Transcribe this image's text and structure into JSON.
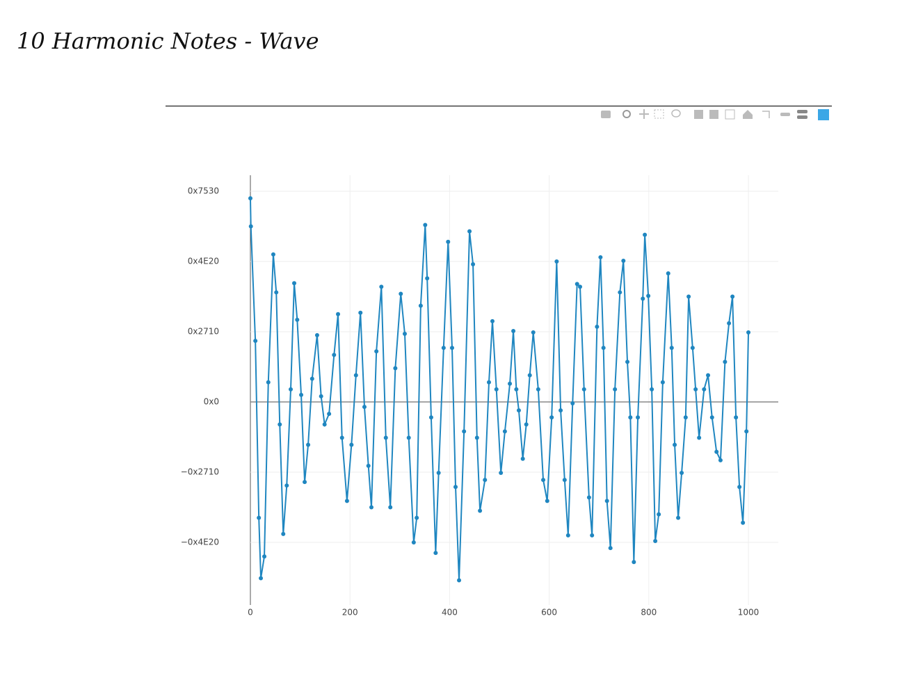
{
  "page_title": "10 Harmonic Notes - Wave",
  "chart_data": {
    "type": "line",
    "color": "#1f86c0",
    "markers": true,
    "grid": true,
    "zeroline": true,
    "xlim": [
      0,
      1060
    ],
    "ylim": [
      -28911,
      32277
    ],
    "xticks": [
      0,
      200,
      400,
      600,
      800,
      1000
    ],
    "yticks": [
      {
        "value": 30000,
        "label": "0x7530"
      },
      {
        "value": 20000,
        "label": "0x4E20"
      },
      {
        "value": 10000,
        "label": "0x2710"
      },
      {
        "value": 0,
        "label": "0x0"
      },
      {
        "value": -10000,
        "label": "−0x2710"
      },
      {
        "value": -20000,
        "label": "−0x4E20"
      }
    ],
    "x": [
      0,
      1,
      10,
      17,
      21,
      28,
      36,
      46,
      52,
      59,
      66,
      73,
      81,
      88,
      94,
      102,
      109,
      116,
      124,
      134,
      142,
      149,
      158,
      168,
      176,
      184,
      194,
      203,
      212,
      221,
      229,
      237,
      243,
      253,
      263,
      272,
      281,
      291,
      302,
      310,
      318,
      328,
      334,
      342,
      351,
      355,
      363,
      372,
      378,
      388,
      397,
      405,
      412,
      419,
      429,
      440,
      447,
      455,
      461,
      471,
      479,
      486,
      494,
      503,
      511,
      521,
      528,
      534,
      539,
      547,
      554,
      561,
      568,
      578,
      588,
      596,
      605,
      615,
      623,
      631,
      638,
      647,
      656,
      662,
      670,
      680,
      686,
      696,
      703,
      709,
      716,
      723,
      732,
      742,
      749,
      757,
      763,
      770,
      778,
      788,
      792,
      799,
      806,
      813,
      820,
      828,
      839,
      846,
      852,
      859,
      866,
      874,
      880,
      888,
      894,
      901,
      911,
      919,
      927,
      936,
      944,
      953,
      961,
      968,
      975,
      982,
      989,
      996,
      1000
    ],
    "values": [
      29000,
      25000,
      8700,
      -16500,
      -25100,
      -22000,
      2800,
      21000,
      15600,
      -3200,
      -18800,
      -11900,
      1800,
      16900,
      11700,
      1000,
      -11400,
      -6100,
      3300,
      9500,
      800,
      -3200,
      -1700,
      6700,
      12500,
      -5100,
      -14100,
      -6100,
      3800,
      12700,
      -700,
      -9100,
      -15000,
      7200,
      16400,
      -5100,
      -15000,
      4800,
      15400,
      9700,
      -5100,
      -20000,
      -16500,
      13700,
      25200,
      17600,
      -2200,
      -21500,
      -10100,
      7700,
      22800,
      7700,
      -12100,
      -25400,
      -4200,
      24300,
      19600,
      -5100,
      -15500,
      -11100,
      2800,
      11500,
      1800,
      -10100,
      -4200,
      2600,
      10100,
      1800,
      -1200,
      -8100,
      -3200,
      3800,
      9900,
      1800,
      -11100,
      -14100,
      -2200,
      20000,
      -1200,
      -11100,
      -19000,
      -200,
      16800,
      16400,
      1800,
      -13600,
      -19000,
      10700,
      20600,
      7700,
      -14100,
      -20800,
      1800,
      15600,
      20100,
      5700,
      -2200,
      -22800,
      -2200,
      14700,
      23800,
      15100,
      1800,
      -19800,
      -16000,
      2800,
      18300,
      7700,
      -6100,
      -16500,
      -10100,
      -2200,
      15000,
      7700,
      1800,
      -5100,
      1800,
      3800,
      -2200,
      -7100,
      -8300,
      5700,
      11200,
      15000,
      -2200,
      -12100,
      -17200,
      -4200,
      9900
    ]
  }
}
